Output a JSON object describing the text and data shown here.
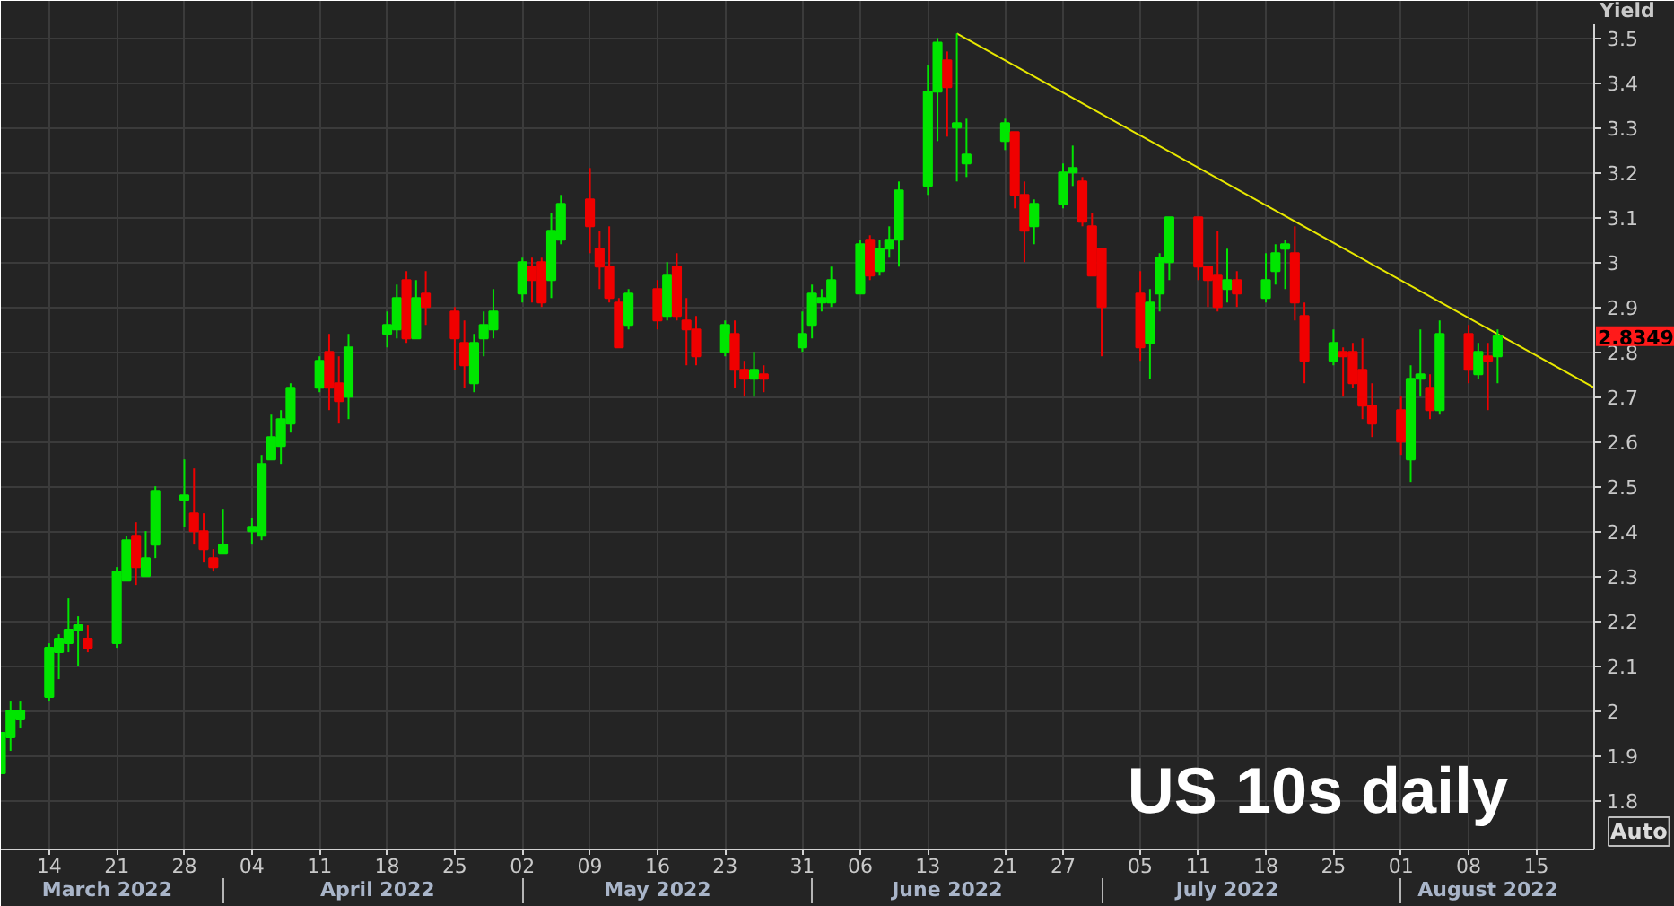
{
  "chart_data": {
    "type": "candlestick",
    "x": [
      "2022-03-09",
      "2022-03-10",
      "2022-03-11",
      "2022-03-14",
      "2022-03-15",
      "2022-03-16",
      "2022-03-17",
      "2022-03-18",
      "2022-03-21",
      "2022-03-22",
      "2022-03-23",
      "2022-03-24",
      "2022-03-25",
      "2022-03-28",
      "2022-03-29",
      "2022-03-30",
      "2022-03-31",
      "2022-04-01",
      "2022-04-04",
      "2022-04-05",
      "2022-04-06",
      "2022-04-07",
      "2022-04-08",
      "2022-04-11",
      "2022-04-12",
      "2022-04-13",
      "2022-04-14",
      "2022-04-18",
      "2022-04-19",
      "2022-04-20",
      "2022-04-21",
      "2022-04-22",
      "2022-04-25",
      "2022-04-26",
      "2022-04-27",
      "2022-04-28",
      "2022-04-29",
      "2022-05-02",
      "2022-05-03",
      "2022-05-04",
      "2022-05-05",
      "2022-05-06",
      "2022-05-09",
      "2022-05-10",
      "2022-05-11",
      "2022-05-12",
      "2022-05-13",
      "2022-05-16",
      "2022-05-17",
      "2022-05-18",
      "2022-05-19",
      "2022-05-20",
      "2022-05-23",
      "2022-05-24",
      "2022-05-25",
      "2022-05-26",
      "2022-05-27",
      "2022-05-31",
      "2022-06-01",
      "2022-06-02",
      "2022-06-03",
      "2022-06-06",
      "2022-06-07",
      "2022-06-08",
      "2022-06-09",
      "2022-06-10",
      "2022-06-13",
      "2022-06-14",
      "2022-06-15",
      "2022-06-16",
      "2022-06-17",
      "2022-06-21",
      "2022-06-22",
      "2022-06-23",
      "2022-06-24",
      "2022-06-27",
      "2022-06-28",
      "2022-06-29",
      "2022-06-30",
      "2022-07-01",
      "2022-07-05",
      "2022-07-06",
      "2022-07-07",
      "2022-07-08",
      "2022-07-11",
      "2022-07-12",
      "2022-07-13",
      "2022-07-14",
      "2022-07-15",
      "2022-07-18",
      "2022-07-19",
      "2022-07-20",
      "2022-07-21",
      "2022-07-22",
      "2022-07-25",
      "2022-07-26",
      "2022-07-27",
      "2022-07-28",
      "2022-07-29",
      "2022-08-01",
      "2022-08-02",
      "2022-08-03",
      "2022-08-04",
      "2022-08-05",
      "2022-08-08",
      "2022-08-09",
      "2022-08-10",
      "2022-08-11"
    ],
    "ohlc": [
      [
        1.86,
        1.95,
        1.86,
        1.95
      ],
      [
        1.94,
        2.02,
        1.91,
        2.0
      ],
      [
        1.98,
        2.02,
        1.96,
        2.0
      ],
      [
        2.03,
        2.15,
        2.02,
        2.14
      ],
      [
        2.13,
        2.17,
        2.07,
        2.16
      ],
      [
        2.15,
        2.25,
        2.13,
        2.18
      ],
      [
        2.18,
        2.21,
        2.1,
        2.19
      ],
      [
        2.16,
        2.19,
        2.13,
        2.14
      ],
      [
        2.15,
        2.32,
        2.14,
        2.31
      ],
      [
        2.29,
        2.39,
        2.29,
        2.38
      ],
      [
        2.39,
        2.42,
        2.28,
        2.32
      ],
      [
        2.3,
        2.4,
        2.3,
        2.34
      ],
      [
        2.37,
        2.5,
        2.34,
        2.49
      ],
      [
        2.47,
        2.56,
        2.41,
        2.48
      ],
      [
        2.44,
        2.54,
        2.37,
        2.4
      ],
      [
        2.4,
        2.44,
        2.33,
        2.36
      ],
      [
        2.34,
        2.36,
        2.31,
        2.32
      ],
      [
        2.35,
        2.45,
        2.35,
        2.37
      ],
      [
        2.4,
        2.43,
        2.37,
        2.41
      ],
      [
        2.39,
        2.57,
        2.38,
        2.55
      ],
      [
        2.56,
        2.66,
        2.56,
        2.61
      ],
      [
        2.59,
        2.67,
        2.55,
        2.65
      ],
      [
        2.64,
        2.73,
        2.62,
        2.72
      ],
      [
        2.72,
        2.79,
        2.71,
        2.78
      ],
      [
        2.8,
        2.84,
        2.67,
        2.72
      ],
      [
        2.73,
        2.79,
        2.64,
        2.69
      ],
      [
        2.7,
        2.84,
        2.65,
        2.81
      ],
      [
        2.84,
        2.89,
        2.81,
        2.86
      ],
      [
        2.85,
        2.95,
        2.83,
        2.92
      ],
      [
        2.96,
        2.98,
        2.82,
        2.83
      ],
      [
        2.83,
        2.96,
        2.83,
        2.92
      ],
      [
        2.93,
        2.98,
        2.86,
        2.9
      ],
      [
        2.89,
        2.9,
        2.76,
        2.83
      ],
      [
        2.82,
        2.87,
        2.72,
        2.77
      ],
      [
        2.73,
        2.84,
        2.71,
        2.82
      ],
      [
        2.83,
        2.89,
        2.79,
        2.86
      ],
      [
        2.85,
        2.94,
        2.83,
        2.89
      ],
      [
        2.93,
        3.01,
        2.91,
        3.0
      ],
      [
        2.99,
        3.01,
        2.91,
        2.96
      ],
      [
        3.0,
        3.01,
        2.9,
        2.91
      ],
      [
        2.96,
        3.11,
        2.92,
        3.07
      ],
      [
        3.05,
        3.15,
        3.04,
        3.13
      ],
      [
        3.14,
        3.21,
        3.02,
        3.08
      ],
      [
        3.03,
        3.07,
        2.94,
        2.99
      ],
      [
        2.99,
        3.08,
        2.91,
        2.92
      ],
      [
        2.91,
        2.92,
        2.81,
        2.81
      ],
      [
        2.86,
        2.94,
        2.85,
        2.93
      ],
      [
        2.94,
        2.96,
        2.85,
        2.87
      ],
      [
        2.88,
        3.0,
        2.87,
        2.97
      ],
      [
        2.99,
        3.02,
        2.87,
        2.88
      ],
      [
        2.87,
        2.92,
        2.77,
        2.85
      ],
      [
        2.85,
        2.88,
        2.77,
        2.79
      ],
      [
        2.8,
        2.87,
        2.79,
        2.86
      ],
      [
        2.84,
        2.87,
        2.72,
        2.76
      ],
      [
        2.76,
        2.78,
        2.7,
        2.74
      ],
      [
        2.74,
        2.8,
        2.7,
        2.76
      ],
      [
        2.75,
        2.77,
        2.71,
        2.74
      ],
      [
        2.81,
        2.89,
        2.8,
        2.84
      ],
      [
        2.86,
        2.95,
        2.83,
        2.93
      ],
      [
        2.91,
        2.94,
        2.89,
        2.92
      ],
      [
        2.91,
        2.99,
        2.9,
        2.96
      ],
      [
        2.93,
        3.05,
        2.93,
        3.04
      ],
      [
        3.05,
        3.06,
        2.96,
        2.97
      ],
      [
        2.98,
        3.05,
        2.97,
        3.03
      ],
      [
        3.03,
        3.08,
        3.01,
        3.05
      ],
      [
        3.05,
        3.18,
        2.99,
        3.16
      ],
      [
        3.17,
        3.44,
        3.15,
        3.38
      ],
      [
        3.38,
        3.5,
        3.27,
        3.49
      ],
      [
        3.45,
        3.47,
        3.28,
        3.39
      ],
      [
        3.3,
        3.51,
        3.18,
        3.31
      ],
      [
        3.22,
        3.32,
        3.19,
        3.24
      ],
      [
        3.27,
        3.32,
        3.25,
        3.31
      ],
      [
        3.29,
        3.29,
        3.12,
        3.15
      ],
      [
        3.15,
        3.18,
        3.0,
        3.07
      ],
      [
        3.08,
        3.14,
        3.04,
        3.13
      ],
      [
        3.13,
        3.22,
        3.12,
        3.2
      ],
      [
        3.2,
        3.26,
        3.17,
        3.21
      ],
      [
        3.18,
        3.19,
        3.08,
        3.09
      ],
      [
        3.08,
        3.11,
        2.97,
        2.97
      ],
      [
        3.03,
        3.03,
        2.79,
        2.9
      ],
      [
        2.93,
        2.98,
        2.78,
        2.81
      ],
      [
        2.82,
        2.94,
        2.74,
        2.91
      ],
      [
        2.93,
        3.02,
        2.89,
        3.01
      ],
      [
        3.0,
        3.1,
        2.96,
        3.1
      ],
      [
        3.1,
        3.1,
        2.96,
        2.99
      ],
      [
        2.99,
        2.99,
        2.9,
        2.96
      ],
      [
        2.97,
        3.07,
        2.89,
        2.9
      ],
      [
        2.94,
        3.03,
        2.91,
        2.96
      ],
      [
        2.96,
        2.98,
        2.9,
        2.93
      ],
      [
        2.92,
        3.02,
        2.91,
        2.96
      ],
      [
        2.98,
        3.04,
        2.95,
        3.02
      ],
      [
        3.03,
        3.05,
        2.94,
        3.04
      ],
      [
        3.02,
        3.08,
        2.87,
        2.91
      ],
      [
        2.88,
        2.91,
        2.73,
        2.78
      ],
      [
        2.78,
        2.85,
        2.77,
        2.82
      ],
      [
        2.8,
        2.81,
        2.7,
        2.79
      ],
      [
        2.8,
        2.82,
        2.72,
        2.73
      ],
      [
        2.76,
        2.83,
        2.65,
        2.68
      ],
      [
        2.68,
        2.73,
        2.61,
        2.64
      ],
      [
        2.67,
        2.7,
        2.57,
        2.6
      ],
      [
        2.56,
        2.77,
        2.51,
        2.74
      ],
      [
        2.74,
        2.85,
        2.7,
        2.75
      ],
      [
        2.72,
        2.75,
        2.65,
        2.67
      ],
      [
        2.67,
        2.87,
        2.66,
        2.84
      ],
      [
        2.84,
        2.86,
        2.73,
        2.76
      ],
      [
        2.75,
        2.82,
        2.74,
        2.8
      ],
      [
        2.79,
        2.82,
        2.67,
        2.78
      ],
      [
        2.79,
        2.85,
        2.73,
        2.8349
      ]
    ],
    "colors": [
      "#00e600",
      "#00e600",
      "#00e600",
      "#00e600",
      "#00e600",
      "#00e600",
      "#00e600",
      "#f00000",
      "#00e600",
      "#00e600",
      "#f00000",
      "#00e600",
      "#00e600",
      "#00e600",
      "#f00000",
      "#f00000",
      "#f00000",
      "#00e600",
      "#00e600",
      "#00e600",
      "#00e600",
      "#00e600",
      "#00e600",
      "#00e600",
      "#f00000",
      "#f00000",
      "#00e600",
      "#00e600",
      "#00e600",
      "#f00000",
      "#00e600",
      "#f00000",
      "#f00000",
      "#f00000",
      "#00e600",
      "#00e600",
      "#00e600",
      "#00e600",
      "#f00000",
      "#f00000",
      "#00e600",
      "#00e600",
      "#f00000",
      "#f00000",
      "#f00000",
      "#f00000",
      "#00e600",
      "#f00000",
      "#00e600",
      "#f00000",
      "#f00000",
      "#f00000",
      "#00e600",
      "#f00000",
      "#f00000",
      "#00e600",
      "#f00000",
      "#00e600",
      "#00e600",
      "#00e600",
      "#00e600",
      "#00e600",
      "#f00000",
      "#00e600",
      "#00e600",
      "#00e600",
      "#00e600",
      "#00e600",
      "#f00000",
      "#00e600",
      "#00e600",
      "#00e600",
      "#f00000",
      "#f00000",
      "#00e600",
      "#00e600",
      "#00e600",
      "#f00000",
      "#f00000",
      "#f00000",
      "#f00000",
      "#00e600",
      "#00e600",
      "#00e600",
      "#f00000",
      "#f00000",
      "#f00000",
      "#00e600",
      "#f00000",
      "#00e600",
      "#00e600",
      "#00e600",
      "#f00000",
      "#f00000",
      "#00e600",
      "#f00000",
      "#f00000",
      "#f00000",
      "#f00000",
      "#f00000",
      "#00e600",
      "#00e600",
      "#f00000",
      "#00e600",
      "#f00000",
      "#00e600",
      "#f00000",
      "#00e600"
    ],
    "series": [
      {
        "type": "line",
        "x": [
          "2022-06-16",
          "2022-08-21"
        ],
        "values": [
          3.51,
          2.72
        ],
        "color": "#e8e800"
      }
    ],
    "xlim": [
      "2022-03-09",
      "2022-08-21"
    ],
    "xticks": [
      {
        "value": "2022-03-14",
        "label": "14"
      },
      {
        "value": "2022-03-21",
        "label": "21"
      },
      {
        "value": "2022-03-28",
        "label": "28"
      },
      {
        "value": "2022-04-04",
        "label": "04"
      },
      {
        "value": "2022-04-11",
        "label": "11"
      },
      {
        "value": "2022-04-18",
        "label": "18"
      },
      {
        "value": "2022-04-25",
        "label": "25"
      },
      {
        "value": "2022-05-02",
        "label": "02"
      },
      {
        "value": "2022-05-09",
        "label": "09"
      },
      {
        "value": "2022-05-16",
        "label": "16"
      },
      {
        "value": "2022-05-23",
        "label": "23"
      },
      {
        "value": "2022-05-31",
        "label": "31"
      },
      {
        "value": "2022-06-06",
        "label": "06"
      },
      {
        "value": "2022-06-13",
        "label": "13"
      },
      {
        "value": "2022-06-21",
        "label": "21"
      },
      {
        "value": "2022-06-27",
        "label": "27"
      },
      {
        "value": "2022-07-05",
        "label": "05"
      },
      {
        "value": "2022-07-11",
        "label": "11"
      },
      {
        "value": "2022-07-18",
        "label": "18"
      },
      {
        "value": "2022-07-25",
        "label": "25"
      },
      {
        "value": "2022-08-01",
        "label": "01"
      },
      {
        "value": "2022-08-08",
        "label": "08"
      },
      {
        "value": "2022-08-15",
        "label": "15"
      }
    ],
    "x2lim": [
      "2022-03-09",
      "2022-08-21"
    ],
    "x2ticks": [
      {
        "value": "2022-03-20",
        "label": "March 2022"
      },
      {
        "value": "2022-04-17",
        "label": "April 2022"
      },
      {
        "value": "2022-05-16",
        "label": "May 2022"
      },
      {
        "value": "2022-06-15",
        "label": "June 2022"
      },
      {
        "value": "2022-07-14",
        "label": "July 2022"
      },
      {
        "value": "2022-08-10",
        "label": "August 2022"
      }
    ],
    "ylim": [
      1.69,
      3.53
    ],
    "yticks": [
      1.8,
      1.9,
      2,
      2.1,
      2.2,
      2.3,
      2.4,
      2.5,
      2.6,
      2.7,
      2.8,
      2.9,
      3,
      3.1,
      3.2,
      3.3,
      3.4,
      3.5
    ],
    "ylabel": "Yield",
    "grid": true,
    "annotations": [
      "US 10s daily",
      "2.8349",
      "Auto"
    ]
  }
}
